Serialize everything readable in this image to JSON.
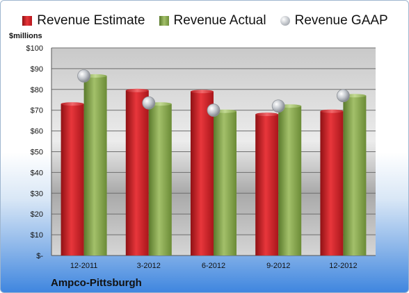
{
  "chart_data": {
    "type": "bar",
    "unit_label": "$millions",
    "categories": [
      "12-2011",
      "3-2012",
      "6-2012",
      "9-2012",
      "12-2012"
    ],
    "series": [
      {
        "name": "Revenue Estimate",
        "type": "bar",
        "color": "#d01f25",
        "values": [
          73,
          79.5,
          79,
          68,
          69.5
        ]
      },
      {
        "name": "Revenue Actual",
        "type": "bar",
        "color": "#7fa048",
        "values": [
          86.5,
          73,
          69.5,
          72,
          77
        ]
      },
      {
        "name": "Revenue GAAP",
        "type": "marker",
        "color": "#b8bcc2",
        "values": [
          86.5,
          73.5,
          70,
          72,
          77
        ]
      }
    ],
    "y_ticks": [
      "$-",
      "$10",
      "$20",
      "$30",
      "$40",
      "$50",
      "$60",
      "$70",
      "$80",
      "$90",
      "$100"
    ],
    "ylim": [
      0,
      100
    ],
    "grid": true,
    "legend_position": "top"
  },
  "footer": {
    "company": "Ampco-Pittsburgh"
  }
}
